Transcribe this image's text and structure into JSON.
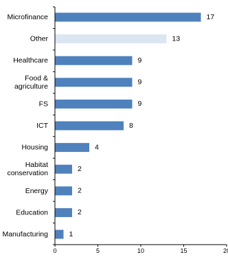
{
  "chart_data": {
    "type": "bar",
    "orientation": "horizontal",
    "categories": [
      [
        "Microfinance"
      ],
      [
        "Other"
      ],
      [
        "Healthcare"
      ],
      [
        "Food &",
        "agriculture"
      ],
      [
        "FS"
      ],
      [
        "ICT"
      ],
      [
        "Housing"
      ],
      [
        "Habitat",
        "conservation"
      ],
      [
        "Energy"
      ],
      [
        "Education"
      ],
      [
        "Manufacturing"
      ]
    ],
    "values": [
      17,
      13,
      9,
      9,
      9,
      8,
      4,
      2,
      2,
      2,
      1
    ],
    "value_labels": [
      "17",
      "13",
      "9",
      "9",
      "9",
      "8",
      "4",
      "2",
      "2",
      "2",
      "1"
    ],
    "highlighted_index": 1,
    "xlim": [
      0,
      20
    ],
    "xticks": [
      "0",
      "5",
      "10",
      "15",
      "20"
    ],
    "title": "",
    "xlabel": "",
    "ylabel": "",
    "grid": false,
    "legend": "none",
    "colors": {
      "bar": "#4f81bd",
      "highlight": "#dce6f2",
      "axis": "#000000"
    }
  }
}
